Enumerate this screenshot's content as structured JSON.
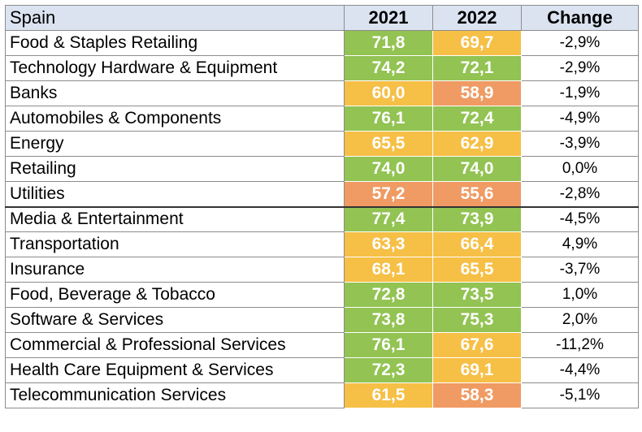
{
  "colors": {
    "header_bg": "#dbe3f1",
    "green": "#92c353",
    "yellow": "#f6bf46",
    "orange": "#ef9b63"
  },
  "chart_data": {
    "type": "table",
    "columns": [
      "Spain",
      "2021",
      "2022",
      "Change"
    ],
    "rows": [
      {
        "name": "Food & Staples Retailing",
        "v2021": "71,8",
        "v2022": "69,7",
        "change": "-2,9%",
        "color2021": "green",
        "color2022": "yellow"
      },
      {
        "name": "Technology Hardware & Equipment",
        "v2021": "74,2",
        "v2022": "72,1",
        "change": "-2,9%",
        "color2021": "green",
        "color2022": "green"
      },
      {
        "name": "Banks",
        "v2021": "60,0",
        "v2022": "58,9",
        "change": "-1,9%",
        "color2021": "yellow",
        "color2022": "orange"
      },
      {
        "name": "Automobiles & Components",
        "v2021": "76,1",
        "v2022": "72,4",
        "change": "-4,9%",
        "color2021": "green",
        "color2022": "green"
      },
      {
        "name": "Energy",
        "v2021": "65,5",
        "v2022": "62,9",
        "change": "-3,9%",
        "color2021": "yellow",
        "color2022": "yellow"
      },
      {
        "name": "Retailing",
        "v2021": "74,0",
        "v2022": "74,0",
        "change": "0,0%",
        "color2021": "green",
        "color2022": "green"
      },
      {
        "name": "Utilities",
        "v2021": "57,2",
        "v2022": "55,6",
        "change": "-2,8%",
        "color2021": "orange",
        "color2022": "orange"
      },
      {
        "name": "Media & Entertainment",
        "v2021": "77,4",
        "v2022": "73,9",
        "change": "-4,5%",
        "color2021": "green",
        "color2022": "green"
      },
      {
        "name": "Transportation",
        "v2021": "63,3",
        "v2022": "66,4",
        "change": "4,9%",
        "color2021": "yellow",
        "color2022": "yellow"
      },
      {
        "name": "Insurance",
        "v2021": "68,1",
        "v2022": "65,5",
        "change": "-3,7%",
        "color2021": "yellow",
        "color2022": "yellow"
      },
      {
        "name": "Food, Beverage & Tobacco",
        "v2021": "72,8",
        "v2022": "73,5",
        "change": "1,0%",
        "color2021": "green",
        "color2022": "green"
      },
      {
        "name": "Software & Services",
        "v2021": "73,8",
        "v2022": "75,3",
        "change": "2,0%",
        "color2021": "green",
        "color2022": "green"
      },
      {
        "name": "Commercial  & Professional Services",
        "v2021": "76,1",
        "v2022": "67,6",
        "change": "-11,2%",
        "color2021": "green",
        "color2022": "yellow"
      },
      {
        "name": "Health Care Equipment & Services",
        "v2021": "72,3",
        "v2022": "69,1",
        "change": "-4,4%",
        "color2021": "green",
        "color2022": "yellow"
      },
      {
        "name": "Telecommunication Services",
        "v2021": "61,5",
        "v2022": "58,3",
        "change": "-5,1%",
        "color2021": "yellow",
        "color2022": "orange"
      }
    ]
  }
}
